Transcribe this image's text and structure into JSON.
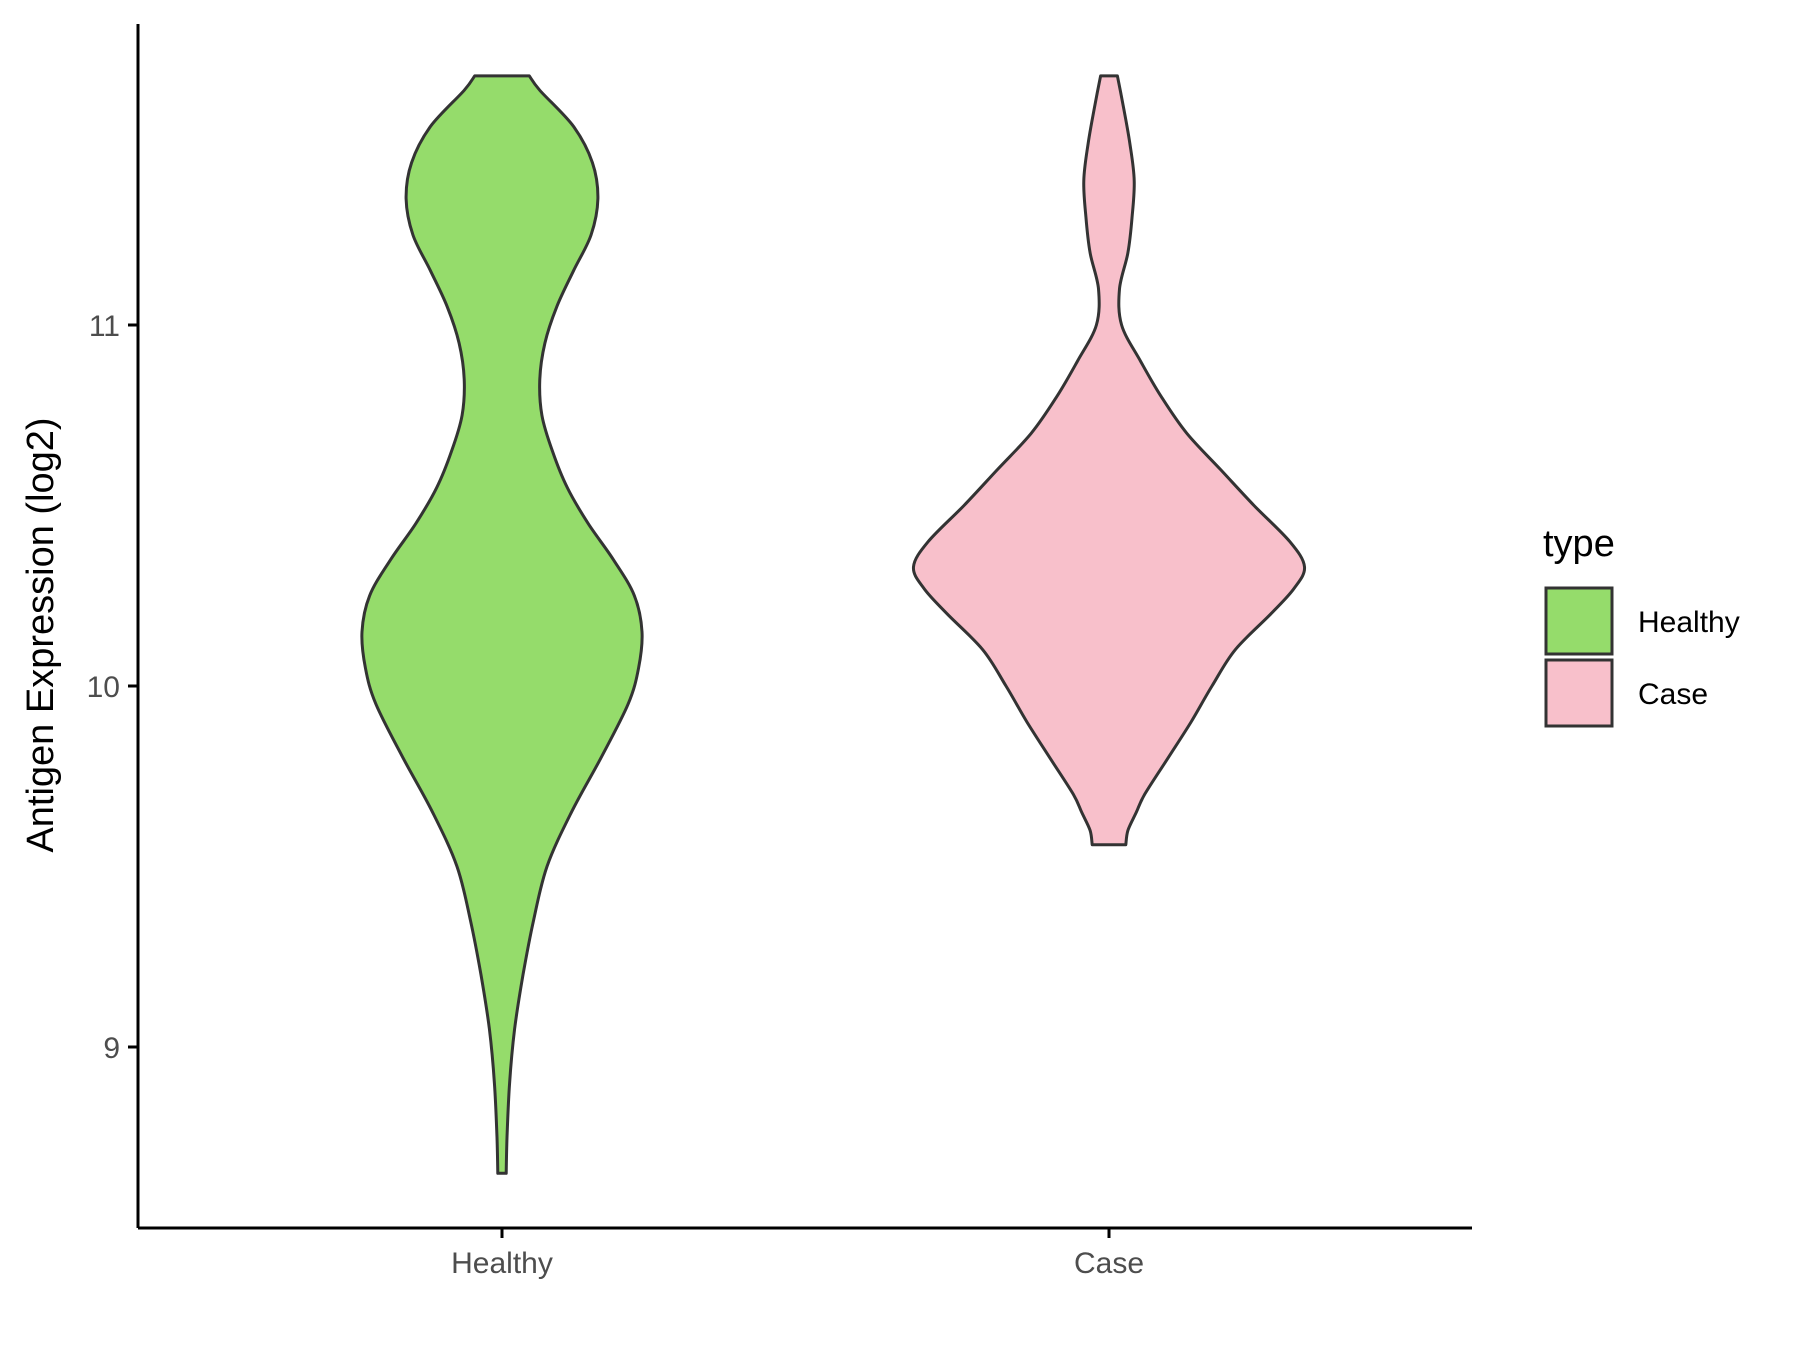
{
  "chart_data": {
    "type": "violin",
    "title": "",
    "xlabel": "",
    "ylabel": "Antigen Expression (log2)",
    "categories": [
      "Healthy",
      "Case"
    ],
    "ylim": [
      8.45,
      11.8
    ],
    "yticks": [
      9,
      10,
      11
    ],
    "grid": false,
    "legend": {
      "title": "type",
      "position": "right",
      "entries": [
        {
          "label": "Healthy",
          "color": "#95dc6b"
        },
        {
          "label": "Case",
          "color": "#f8c0cb"
        }
      ]
    },
    "series": [
      {
        "name": "Healthy",
        "color": "#95dc6b",
        "min": 8.65,
        "max": 11.69,
        "profile": [
          [
            8.65,
            0.01
          ],
          [
            8.75,
            0.012
          ],
          [
            8.9,
            0.018
          ],
          [
            9.05,
            0.03
          ],
          [
            9.2,
            0.05
          ],
          [
            9.35,
            0.075
          ],
          [
            9.5,
            0.107
          ],
          [
            9.65,
            0.165
          ],
          [
            9.8,
            0.235
          ],
          [
            9.95,
            0.3
          ],
          [
            10.05,
            0.325
          ],
          [
            10.15,
            0.333
          ],
          [
            10.25,
            0.315
          ],
          [
            10.35,
            0.265
          ],
          [
            10.45,
            0.205
          ],
          [
            10.55,
            0.155
          ],
          [
            10.65,
            0.12
          ],
          [
            10.75,
            0.095
          ],
          [
            10.85,
            0.09
          ],
          [
            10.95,
            0.102
          ],
          [
            11.05,
            0.13
          ],
          [
            11.15,
            0.17
          ],
          [
            11.25,
            0.212
          ],
          [
            11.35,
            0.228
          ],
          [
            11.45,
            0.215
          ],
          [
            11.55,
            0.17
          ],
          [
            11.65,
            0.09
          ],
          [
            11.69,
            0.065
          ]
        ]
      },
      {
        "name": "Case",
        "color": "#f8c0cb",
        "min": 9.56,
        "max": 11.69,
        "profile": [
          [
            9.56,
            0.04
          ],
          [
            9.6,
            0.045
          ],
          [
            9.65,
            0.065
          ],
          [
            9.7,
            0.085
          ],
          [
            9.8,
            0.14
          ],
          [
            9.9,
            0.195
          ],
          [
            10.0,
            0.245
          ],
          [
            10.1,
            0.3
          ],
          [
            10.2,
            0.385
          ],
          [
            10.27,
            0.44
          ],
          [
            10.33,
            0.465
          ],
          [
            10.4,
            0.43
          ],
          [
            10.5,
            0.345
          ],
          [
            10.6,
            0.265
          ],
          [
            10.7,
            0.185
          ],
          [
            10.8,
            0.125
          ],
          [
            10.9,
            0.075
          ],
          [
            11.0,
            0.03
          ],
          [
            11.1,
            0.025
          ],
          [
            11.2,
            0.045
          ],
          [
            11.3,
            0.055
          ],
          [
            11.4,
            0.06
          ],
          [
            11.5,
            0.05
          ],
          [
            11.6,
            0.035
          ],
          [
            11.69,
            0.02
          ]
        ]
      }
    ]
  }
}
